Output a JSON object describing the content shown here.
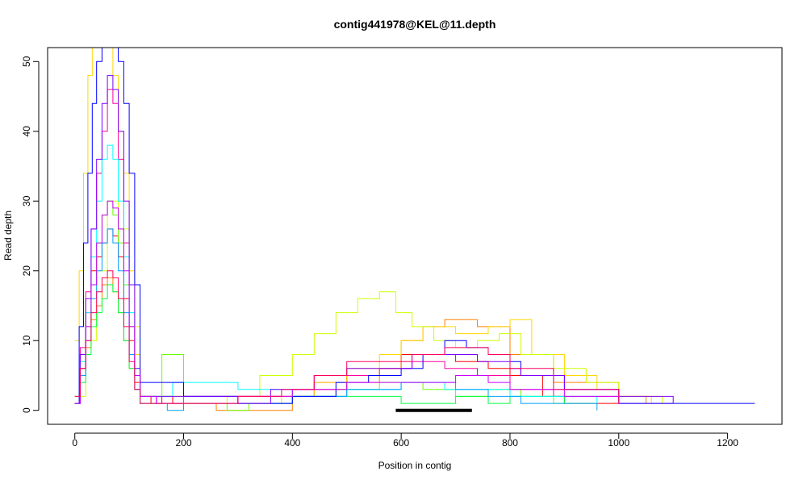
{
  "chart_data": {
    "type": "line",
    "title": "contig441978@KEL@11.depth",
    "xlabel": "Position in contig",
    "ylabel": "Read depth",
    "xlim": [
      -50,
      1300
    ],
    "ylim": [
      -2,
      52
    ],
    "xticks": [
      0,
      200,
      400,
      600,
      800,
      1000,
      1200
    ],
    "yticks": [
      0,
      10,
      20,
      30,
      40,
      50
    ],
    "xtick_labels": [
      "0",
      "200",
      "400",
      "600",
      "800",
      "1000",
      "1200"
    ],
    "ytick_labels": [
      "0",
      "10",
      "20",
      "30",
      "40",
      "50"
    ],
    "grid": false,
    "legend": "none",
    "highlight_segment": {
      "x": [
        590,
        730
      ],
      "y": 0,
      "color": "#000000"
    },
    "series": [
      {
        "color": "#FF0000",
        "x": [
          0,
          10,
          20,
          30,
          40,
          50,
          60,
          70,
          80,
          90,
          100,
          110,
          120,
          140,
          160,
          180,
          200,
          300,
          400,
          500,
          560,
          600,
          640,
          700,
          760,
          800,
          860,
          900,
          1000
        ],
        "y": [
          1,
          8,
          14,
          20,
          22,
          24,
          26,
          25,
          22,
          16,
          10,
          4,
          2,
          1,
          2,
          1,
          2,
          2,
          3,
          5,
          6,
          8,
          8,
          7,
          6,
          5,
          2,
          1,
          1
        ]
      },
      {
        "color": "#FF00A0",
        "x": [
          0,
          10,
          20,
          30,
          40,
          50,
          60,
          70,
          80,
          90,
          100,
          110,
          120,
          150,
          200,
          300,
          440,
          500,
          560,
          620,
          680,
          740,
          800,
          880,
          1000,
          1100
        ],
        "y": [
          2,
          9,
          17,
          26,
          34,
          40,
          46,
          44,
          36,
          24,
          12,
          5,
          2,
          1,
          1,
          2,
          4,
          5,
          6,
          7,
          6,
          5,
          3,
          2,
          1,
          1
        ]
      },
      {
        "color": "#FF7F00",
        "x": [
          0,
          10,
          20,
          30,
          40,
          50,
          60,
          70,
          80,
          90,
          100,
          110,
          120,
          200,
          260,
          400,
          500,
          560,
          600,
          640,
          680,
          740,
          800,
          880,
          1000,
          1050
        ],
        "y": [
          1,
          5,
          9,
          13,
          15,
          18,
          19,
          17,
          14,
          10,
          6,
          3,
          1,
          1,
          0,
          2,
          4,
          6,
          10,
          12,
          13,
          12,
          8,
          4,
          2,
          1
        ]
      },
      {
        "color": "#FFD700",
        "x": [
          0,
          8,
          16,
          24,
          32,
          40,
          50,
          60,
          70,
          80,
          90,
          100,
          110,
          120,
          200,
          300,
          380,
          440,
          500,
          560,
          600,
          640,
          700,
          760,
          800,
          840,
          900,
          960,
          1000,
          1060
        ],
        "y": [
          10,
          20,
          34,
          48,
          56,
          60,
          58,
          52,
          48,
          40,
          34,
          20,
          8,
          2,
          1,
          1,
          2,
          4,
          6,
          8,
          10,
          12,
          11,
          12,
          13,
          8,
          5,
          3,
          2,
          1
        ]
      },
      {
        "color": "#CCFF00",
        "x": [
          0,
          20,
          40,
          60,
          80,
          100,
          120,
          200,
          280,
          340,
          400,
          440,
          480,
          520,
          560,
          590,
          620,
          660,
          700,
          740,
          780,
          820,
          880,
          940,
          1000,
          1080
        ],
        "y": [
          2,
          10,
          20,
          30,
          26,
          12,
          2,
          1,
          2,
          5,
          8,
          11,
          14,
          16,
          17,
          14,
          12,
          10,
          9,
          10,
          11,
          8,
          6,
          4,
          2,
          1
        ]
      },
      {
        "color": "#66FF00",
        "x": [
          0,
          10,
          20,
          30,
          40,
          50,
          60,
          70,
          80,
          90,
          100,
          110,
          120,
          160,
          200,
          280,
          320,
          400,
          480,
          560,
          640,
          700,
          760,
          820,
          880,
          960
        ],
        "y": [
          1,
          6,
          12,
          18,
          24,
          28,
          30,
          28,
          24,
          18,
          12,
          5,
          2,
          8,
          1,
          0,
          1,
          2,
          3,
          4,
          3,
          2,
          3,
          2,
          1,
          1
        ]
      },
      {
        "color": "#00FF40",
        "x": [
          0,
          10,
          20,
          30,
          40,
          50,
          60,
          70,
          80,
          90,
          100,
          110,
          120,
          200,
          300,
          400,
          500,
          600,
          700,
          760,
          800,
          900
        ],
        "y": [
          1,
          4,
          8,
          12,
          14,
          16,
          18,
          17,
          14,
          10,
          6,
          3,
          1,
          1,
          1,
          2,
          2,
          1,
          2,
          1,
          2,
          1
        ]
      },
      {
        "color": "#00FFFF",
        "x": [
          0,
          10,
          20,
          30,
          40,
          50,
          60,
          70,
          80,
          90,
          100,
          110,
          120,
          180,
          300,
          400,
          500,
          600,
          680,
          760,
          800,
          880,
          960
        ],
        "y": [
          1,
          7,
          14,
          22,
          30,
          36,
          38,
          36,
          30,
          22,
          14,
          6,
          2,
          4,
          3,
          2,
          3,
          4,
          3,
          3,
          2,
          2,
          1
        ]
      },
      {
        "color": "#00A0FF",
        "x": [
          0,
          10,
          20,
          30,
          40,
          50,
          60,
          70,
          80,
          90,
          100,
          110,
          120,
          170,
          200,
          300,
          400,
          500,
          600,
          700,
          760,
          820,
          900,
          960
        ],
        "y": [
          1,
          5,
          10,
          16,
          20,
          24,
          26,
          24,
          20,
          14,
          8,
          3,
          1,
          0,
          2,
          1,
          2,
          3,
          4,
          3,
          2,
          1,
          1,
          0
        ]
      },
      {
        "color": "#0000FF",
        "x": [
          0,
          8,
          16,
          24,
          32,
          40,
          50,
          60,
          70,
          80,
          90,
          100,
          110,
          120,
          200,
          300,
          400,
          480,
          540,
          600,
          640,
          680,
          720,
          760,
          800,
          820,
          900,
          1000,
          1100,
          1200,
          1250
        ],
        "y": [
          1,
          12,
          24,
          34,
          44,
          50,
          53,
          55,
          54,
          50,
          44,
          34,
          18,
          4,
          2,
          1,
          2,
          4,
          5,
          6,
          8,
          10,
          9,
          8,
          7,
          5,
          3,
          1,
          1,
          1,
          1
        ]
      },
      {
        "color": "#7F00FF",
        "x": [
          0,
          10,
          20,
          30,
          40,
          50,
          60,
          70,
          80,
          90,
          100,
          110,
          120,
          200,
          300,
          360,
          440,
          500,
          560,
          620,
          680,
          740,
          800,
          820,
          900,
          1000,
          1100
        ],
        "y": [
          1,
          8,
          16,
          26,
          36,
          44,
          48,
          46,
          40,
          30,
          18,
          6,
          2,
          2,
          1,
          3,
          5,
          6,
          6,
          8,
          8,
          7,
          6,
          5,
          3,
          2,
          1
        ]
      },
      {
        "color": "#CC00FF",
        "x": [
          0,
          10,
          20,
          30,
          40,
          50,
          60,
          70,
          80,
          90,
          100,
          110,
          120,
          150,
          200,
          300,
          400,
          500,
          600,
          700,
          760,
          800,
          900,
          1000
        ],
        "y": [
          1,
          6,
          12,
          18,
          24,
          28,
          30,
          29,
          26,
          20,
          12,
          5,
          2,
          1,
          1,
          2,
          3,
          4,
          4,
          5,
          4,
          3,
          2,
          1
        ]
      },
      {
        "color": "#FF0060",
        "x": [
          0,
          10,
          20,
          30,
          40,
          50,
          60,
          70,
          80,
          90,
          100,
          110,
          120,
          200,
          300,
          380,
          440,
          500,
          560,
          620,
          680,
          720,
          760,
          800,
          880,
          1000
        ],
        "y": [
          2,
          6,
          10,
          14,
          17,
          19,
          20,
          19,
          16,
          12,
          7,
          3,
          1,
          1,
          2,
          3,
          5,
          7,
          7,
          8,
          9,
          9,
          8,
          6,
          3,
          1
        ]
      }
    ]
  }
}
